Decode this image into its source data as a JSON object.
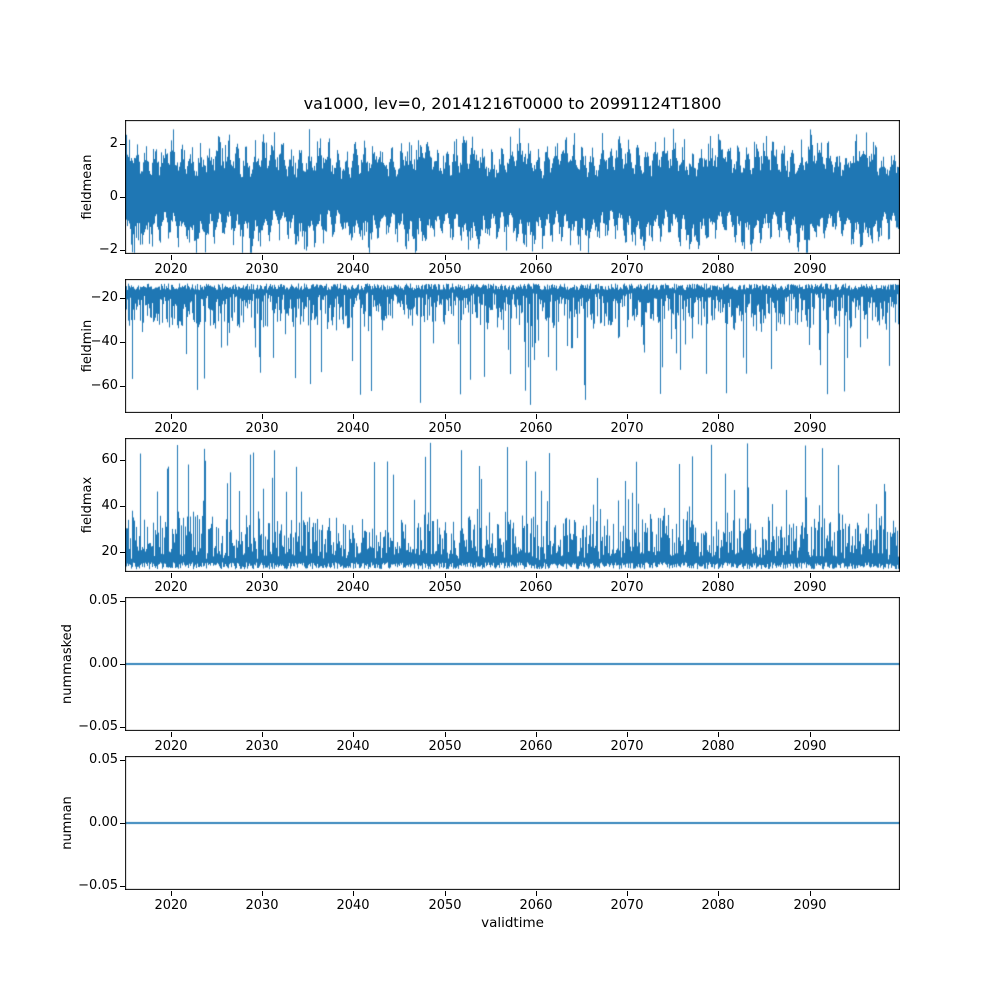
{
  "figure": {
    "title": "va1000, lev=0, 20141216T0000 to 20991124T1800",
    "xlabel": "validtime",
    "line_color": "#1f77b4",
    "background_color": "#ffffff",
    "x_range": [
      2014.96,
      2099.9
    ],
    "xticks": [
      2020,
      2030,
      2040,
      2050,
      2060,
      2070,
      2080,
      2090
    ]
  },
  "chart_data": [
    {
      "type": "line",
      "ylabel": "fieldmean",
      "x_range": [
        2014.96,
        2099.9
      ],
      "xticks": [
        2020,
        2030,
        2040,
        2050,
        2060,
        2070,
        2080,
        2090
      ],
      "ylim": [
        -2.15,
        2.9
      ],
      "yticks": [
        -2,
        0,
        2
      ],
      "ytick_labels": [
        "−2",
        "0",
        "2"
      ],
      "grid": false,
      "series": [
        {
          "name": "fieldmean",
          "style": "dense-oscillation",
          "typical_band": [
            -1.2,
            1.6
          ],
          "extremes": [
            -2.1,
            2.85
          ]
        }
      ]
    },
    {
      "type": "line",
      "ylabel": "fieldmin",
      "x_range": [
        2014.96,
        2099.9
      ],
      "xticks": [
        2020,
        2030,
        2040,
        2050,
        2060,
        2070,
        2080,
        2090
      ],
      "ylim": [
        -72,
        -11.5
      ],
      "yticks": [
        -60,
        -40,
        -20
      ],
      "ytick_labels": [
        "−60",
        "−40",
        "−20"
      ],
      "grid": false,
      "series": [
        {
          "name": "fieldmin",
          "style": "dense-band-downward-spikes",
          "band": [
            -30,
            -13.5
          ],
          "spike_min": -70
        }
      ]
    },
    {
      "type": "line",
      "ylabel": "fieldmax",
      "x_range": [
        2014.96,
        2099.9
      ],
      "xticks": [
        2020,
        2030,
        2040,
        2050,
        2060,
        2070,
        2080,
        2090
      ],
      "ylim": [
        11.3,
        69.6
      ],
      "yticks": [
        20,
        40,
        60
      ],
      "ytick_labels": [
        "20",
        "40",
        "60"
      ],
      "grid": false,
      "series": [
        {
          "name": "fieldmax",
          "style": "dense-band-upward-spikes",
          "band": [
            12.5,
            32
          ],
          "spike_max": 68
        }
      ]
    },
    {
      "type": "line",
      "ylabel": "nummasked",
      "x_range": [
        2014.96,
        2099.9
      ],
      "xticks": [
        2020,
        2030,
        2040,
        2050,
        2060,
        2070,
        2080,
        2090
      ],
      "ylim": [
        -0.0535,
        0.0535
      ],
      "yticks": [
        -0.05,
        0,
        0.05
      ],
      "ytick_labels": [
        "−0.05",
        "0.00",
        "0.05"
      ],
      "grid": false,
      "series": [
        {
          "name": "nummasked",
          "style": "constant",
          "value": 0
        }
      ]
    },
    {
      "type": "line",
      "ylabel": "numnan",
      "x_range": [
        2014.96,
        2099.9
      ],
      "xticks": [
        2020,
        2030,
        2040,
        2050,
        2060,
        2070,
        2080,
        2090
      ],
      "ylim": [
        -0.0535,
        0.0535
      ],
      "yticks": [
        -0.05,
        0,
        0.05
      ],
      "ytick_labels": [
        "−0.05",
        "0.00",
        "0.05"
      ],
      "grid": false,
      "series": [
        {
          "name": "numnan",
          "style": "constant",
          "value": 0
        }
      ]
    }
  ]
}
